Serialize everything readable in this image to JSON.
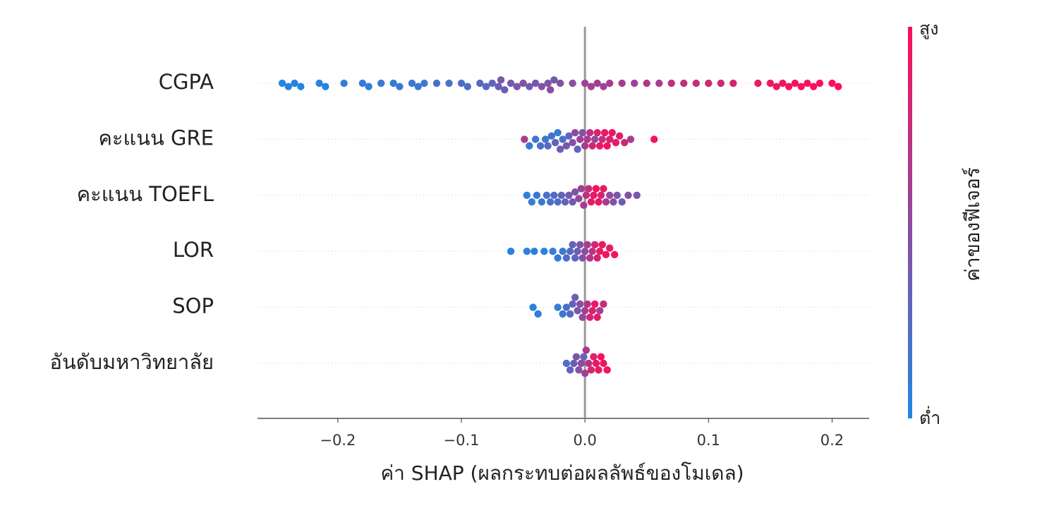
{
  "chart_data": {
    "type": "beeswarm",
    "xlabel": "ค่า SHAP (ผลกระทบต่อผลลัพธ์ของโมเดล)",
    "xlim": [
      -0.265,
      0.23
    ],
    "xticks": [
      {
        "value": -0.2,
        "label": "−0.2"
      },
      {
        "value": -0.1,
        "label": "−0.1"
      },
      {
        "value": 0,
        "label": "0.0"
      },
      0.1,
      0.2
    ],
    "grid": true,
    "colormap": [
      "#1e88e5",
      "#ff0d57"
    ],
    "colorbar": {
      "title": "ค่าของฟีเจอร์",
      "high_label": "สูง",
      "low_label": "ต่ำ"
    },
    "categories": [
      "CGPA",
      "คะแนน GRE",
      "คะแนน TOEFL",
      "LOR",
      "SOP",
      "อันดับมหาวิทยาลัย"
    ],
    "rows": [
      {
        "shap": [
          -0.245,
          -0.24,
          -0.235,
          -0.23,
          -0.215,
          -0.21,
          -0.195,
          -0.18,
          -0.175,
          -0.165,
          -0.155,
          -0.15,
          -0.14,
          -0.135,
          -0.13,
          -0.12,
          -0.11,
          -0.1,
          -0.095,
          -0.085,
          -0.08,
          -0.075,
          -0.07,
          -0.068,
          -0.065,
          -0.06,
          -0.055,
          -0.05,
          -0.045,
          -0.04,
          -0.035,
          -0.03,
          -0.028,
          -0.025,
          -0.02,
          -0.01,
          0.0,
          0.005,
          0.01,
          0.015,
          0.02,
          0.03,
          0.04,
          0.05,
          0.06,
          0.07,
          0.08,
          0.09,
          0.1,
          0.11,
          0.12,
          0.14,
          0.15,
          0.155,
          0.16,
          0.165,
          0.17,
          0.175,
          0.18,
          0.185,
          0.19,
          0.2,
          0.205
        ],
        "feature_value": [
          0.02,
          0.05,
          0.03,
          0.04,
          0.06,
          0.05,
          0.08,
          0.1,
          0.09,
          0.12,
          0.1,
          0.12,
          0.13,
          0.15,
          0.14,
          0.2,
          0.18,
          0.22,
          0.2,
          0.28,
          0.25,
          0.3,
          0.35,
          0.4,
          0.32,
          0.38,
          0.42,
          0.45,
          0.36,
          0.4,
          0.45,
          0.42,
          0.5,
          0.38,
          0.46,
          0.5,
          0.55,
          0.58,
          0.6,
          0.55,
          0.6,
          0.62,
          0.58,
          0.64,
          0.62,
          0.7,
          0.72,
          0.75,
          0.78,
          0.76,
          0.82,
          0.88,
          0.9,
          0.92,
          0.93,
          0.95,
          0.94,
          0.96,
          0.95,
          0.97,
          0.98,
          0.97,
          0.99
        ]
      },
      {
        "shap": [
          -0.049,
          -0.045,
          -0.04,
          -0.036,
          -0.032,
          -0.03,
          -0.027,
          -0.024,
          -0.022,
          -0.02,
          -0.018,
          -0.015,
          -0.013,
          -0.01,
          -0.008,
          -0.006,
          -0.004,
          -0.002,
          0.0,
          0.002,
          0.004,
          0.006,
          0.008,
          0.01,
          0.012,
          0.014,
          0.016,
          0.018,
          0.02,
          0.022,
          0.025,
          0.028,
          0.032,
          0.037,
          0.056
        ],
        "feature_value": [
          0.6,
          0.1,
          0.15,
          0.2,
          0.12,
          0.25,
          0.18,
          0.3,
          0.1,
          0.35,
          0.22,
          0.4,
          0.28,
          0.45,
          0.5,
          0.3,
          0.55,
          0.42,
          0.6,
          0.65,
          0.7,
          0.8,
          0.5,
          0.85,
          0.9,
          0.75,
          0.88,
          0.95,
          0.82,
          0.92,
          0.9,
          0.85,
          0.78,
          0.6,
          0.95
        ]
      },
      {
        "shap": [
          -0.047,
          -0.043,
          -0.039,
          -0.035,
          -0.031,
          -0.028,
          -0.025,
          -0.022,
          -0.019,
          -0.016,
          -0.013,
          -0.01,
          -0.008,
          -0.005,
          -0.003,
          -0.001,
          0.001,
          0.003,
          0.005,
          0.007,
          0.009,
          0.011,
          0.013,
          0.015,
          0.017,
          0.02,
          0.023,
          0.026,
          0.03,
          0.035,
          0.042
        ],
        "feature_value": [
          0.08,
          0.1,
          0.12,
          0.15,
          0.2,
          0.18,
          0.25,
          0.22,
          0.3,
          0.28,
          0.35,
          0.4,
          0.45,
          0.5,
          0.55,
          0.6,
          0.7,
          0.75,
          0.85,
          0.9,
          0.95,
          0.92,
          0.8,
          0.88,
          0.6,
          0.5,
          0.45,
          0.4,
          0.35,
          0.45,
          0.4
        ]
      },
      {
        "shap": [
          -0.06,
          -0.047,
          -0.041,
          -0.033,
          -0.026,
          -0.022,
          -0.018,
          -0.015,
          -0.012,
          -0.01,
          -0.008,
          -0.006,
          -0.004,
          -0.002,
          0.0,
          0.002,
          0.004,
          0.006,
          0.008,
          0.01,
          0.012,
          0.014,
          0.017,
          0.02,
          0.024
        ],
        "feature_value": [
          0.05,
          0.06,
          0.08,
          0.05,
          0.1,
          0.12,
          0.15,
          0.2,
          0.25,
          0.3,
          0.28,
          0.35,
          0.4,
          0.45,
          0.5,
          0.6,
          0.65,
          0.7,
          0.8,
          0.85,
          0.9,
          0.92,
          0.95,
          0.88,
          0.96
        ]
      },
      {
        "shap": [
          -0.042,
          -0.038,
          -0.022,
          -0.018,
          -0.015,
          -0.012,
          -0.01,
          -0.008,
          -0.006,
          -0.004,
          -0.002,
          0.0,
          0.002,
          0.004,
          0.006,
          0.008,
          0.01,
          0.012,
          0.015
        ],
        "feature_value": [
          0.05,
          0.08,
          0.1,
          0.15,
          0.2,
          0.25,
          0.3,
          0.35,
          0.4,
          0.45,
          0.5,
          0.6,
          0.7,
          0.8,
          0.85,
          0.9,
          0.88,
          0.6,
          0.75
        ]
      },
      {
        "shap": [
          -0.015,
          -0.012,
          -0.009,
          -0.007,
          -0.005,
          -0.003,
          -0.001,
          0.0,
          0.001,
          0.003,
          0.005,
          0.007,
          0.009,
          0.011,
          0.013,
          0.015,
          0.018
        ],
        "feature_value": [
          0.2,
          0.3,
          0.35,
          0.4,
          0.45,
          0.5,
          0.3,
          0.6,
          0.65,
          0.7,
          0.8,
          0.85,
          0.9,
          0.92,
          0.95,
          0.9,
          0.96
        ]
      }
    ]
  }
}
